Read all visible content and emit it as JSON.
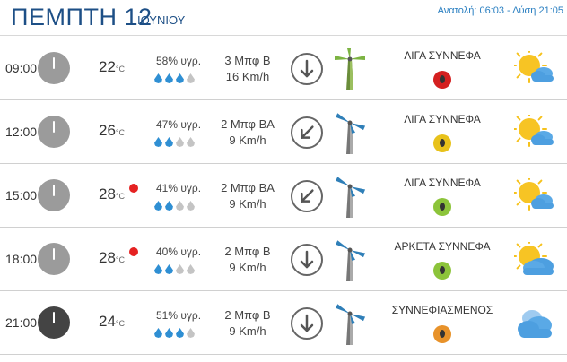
{
  "header": {
    "day": "ΠΕΜΠΤΗ 12",
    "month": "ΙΟΥΝΙΟΥ",
    "sun": "Ανατολή: 06:03  - Δύση 21:05"
  },
  "colors": {
    "title": "#1d4f86",
    "accent": "#2a7fc1",
    "drop_on": "#2f8fd3",
    "drop_off": "#c4c4c4",
    "alert": "#e52222"
  },
  "unit_temp": "°C",
  "rows": [
    {
      "time": "09:00",
      "clock": "light",
      "temp": "22",
      "alert": false,
      "humidity": "58% υγρ.",
      "drops_filled": 3,
      "wind_bft": "3 Μπφ Β",
      "wind_kmh": "16 Km/h",
      "wind_dir_deg": 180,
      "condition": "ΛΙΓΑ ΣΥΝΝΕΦΑ",
      "badge_color": "#d42020",
      "icon": "sun-cloud-icon"
    },
    {
      "time": "12:00",
      "clock": "light",
      "temp": "26",
      "alert": false,
      "humidity": "47% υγρ.",
      "drops_filled": 2,
      "wind_bft": "2 Μπφ ΒΑ",
      "wind_kmh": "9 Km/h",
      "wind_dir_deg": 225,
      "condition": "ΛΙΓΑ ΣΥΝΝΕΦΑ",
      "badge_color": "#e8c21b",
      "icon": "sun-cloud-icon"
    },
    {
      "time": "15:00",
      "clock": "light",
      "temp": "28",
      "alert": true,
      "humidity": "41% υγρ.",
      "drops_filled": 2,
      "wind_bft": "2 Μπφ ΒΑ",
      "wind_kmh": "9 Km/h",
      "wind_dir_deg": 225,
      "condition": "ΛΙΓΑ ΣΥΝΝΕΦΑ",
      "badge_color": "#8cc43a",
      "icon": "sun-cloud-icon"
    },
    {
      "time": "18:00",
      "clock": "light",
      "temp": "28",
      "alert": true,
      "humidity": "40% υγρ.",
      "drops_filled": 2,
      "wind_bft": "2 Μπφ Β",
      "wind_kmh": "9 Km/h",
      "wind_dir_deg": 180,
      "condition": "ΑΡΚΕΤΑ ΣΥΝΝΕΦΑ",
      "badge_color": "#8cc43a",
      "icon": "cloudy-sun-icon"
    },
    {
      "time": "21:00",
      "clock": "dark",
      "temp": "24",
      "alert": false,
      "humidity": "51% υγρ.",
      "drops_filled": 3,
      "wind_bft": "2 Μπφ Β",
      "wind_kmh": "9 Km/h",
      "wind_dir_deg": 180,
      "condition": "ΣΥΝΝΕΦΙΑΣΜΕΝΟΣ",
      "badge_color": "#e8922a",
      "icon": "clouds-icon"
    }
  ]
}
